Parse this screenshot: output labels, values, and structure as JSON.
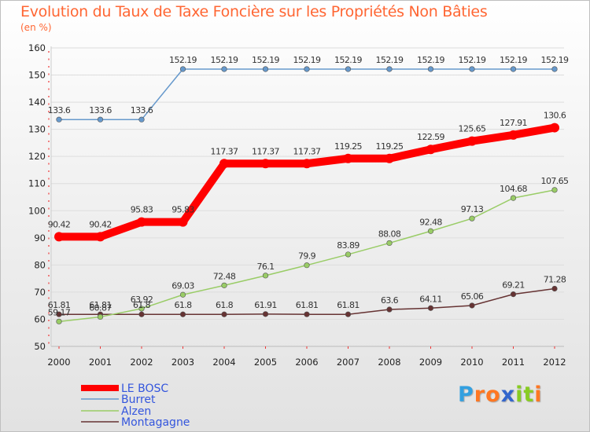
{
  "chart_data": {
    "type": "line",
    "title": "Evolution du Taux de Taxe Foncière sur les Propriétés Non Bâties",
    "subtitle": "(en %)",
    "xlabel": "",
    "ylabel": "",
    "x": [
      "2000",
      "2001",
      "2002",
      "2003",
      "2004",
      "2005",
      "2006",
      "2007",
      "2008",
      "2009",
      "2010",
      "2011",
      "2012"
    ],
    "ylim": [
      50,
      160
    ],
    "yticks": [
      50,
      60,
      70,
      80,
      90,
      100,
      110,
      120,
      130,
      140,
      150,
      160
    ],
    "grid": "horizontal",
    "legend_position": "bottom-left",
    "series": [
      {
        "name": "LE BOSC",
        "color": "#ff0000",
        "values": [
          90.42,
          90.42,
          95.83,
          95.83,
          117.37,
          117.37,
          117.37,
          119.25,
          119.25,
          122.59,
          125.65,
          127.91,
          130.6
        ],
        "labels": [
          "90.42",
          "90.42",
          "95.83",
          "95.83",
          "117.37",
          "117.37",
          "117.37",
          "119.25",
          "119.25",
          "122.59",
          "125.65",
          "127.91",
          "130.6"
        ]
      },
      {
        "name": "Burret",
        "color": "#6699cc",
        "values": [
          133.6,
          133.6,
          133.6,
          152.19,
          152.19,
          152.19,
          152.19,
          152.19,
          152.19,
          152.19,
          152.19,
          152.19,
          152.19
        ],
        "labels": [
          "133.6",
          "133.6",
          "133.6",
          "152.19",
          "152.19",
          "152.19",
          "152.19",
          "152.19",
          "152.19",
          "152.19",
          "152.19",
          "152.19",
          "152.19"
        ]
      },
      {
        "name": "Alzen",
        "color": "#99cc66",
        "values": [
          59.17,
          60.87,
          63.92,
          69.03,
          72.48,
          76.1,
          79.9,
          83.89,
          88.08,
          92.48,
          97.13,
          104.68,
          107.65
        ],
        "labels": [
          "59.17",
          "60.87",
          "63.92",
          "69.03",
          "72.48",
          "76.1",
          "79.9",
          "83.89",
          "88.08",
          "92.48",
          "97.13",
          "104.68",
          "107.65"
        ]
      },
      {
        "name": "Montagagne",
        "color": "#663333",
        "values": [
          61.81,
          61.81,
          61.8,
          61.8,
          61.8,
          61.91,
          61.81,
          61.81,
          63.6,
          64.11,
          65.06,
          69.21,
          71.28
        ],
        "labels": [
          "61.81",
          "61.81",
          "61.8",
          "61.8",
          "61.8",
          "61.91",
          "61.81",
          "61.81",
          "63.6",
          "64.11",
          "65.06",
          "69.21",
          "71.28"
        ]
      }
    ]
  },
  "logo": {
    "letters": [
      "P",
      "r",
      "o",
      "x",
      "i",
      "t",
      "i"
    ],
    "colors": [
      "#33a0e0",
      "#ff7722",
      "#ff7722",
      "#3366cc",
      "#88cc22",
      "#88cc22",
      "#ff7722"
    ]
  }
}
